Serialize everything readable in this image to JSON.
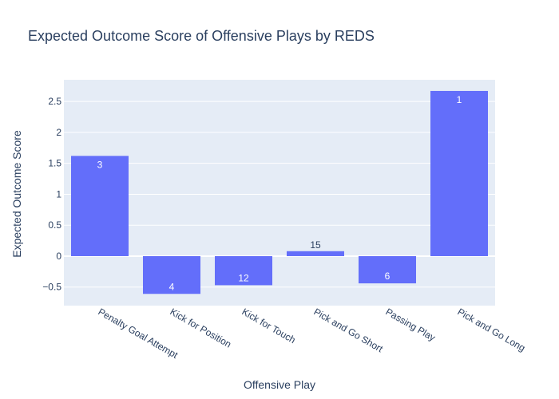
{
  "chart_data": {
    "type": "bar",
    "title": "Expected Outcome Score of Offensive Plays by REDS",
    "xlabel": "Offensive Play",
    "ylabel": "Expected Outcome Score",
    "categories": [
      "Penalty Goal Attempt",
      "Kick for Position",
      "Kick for Touch",
      "Pick and Go Short",
      "Passing Play",
      "Pick and Go Long"
    ],
    "values": [
      1.62,
      -0.61,
      -0.47,
      0.08,
      -0.44,
      2.67
    ],
    "bar_labels": [
      "3",
      "4",
      "12",
      "15",
      "6",
      "1"
    ],
    "ylim": [
      -0.8,
      2.85
    ],
    "yticks": [
      -0.5,
      0,
      0.5,
      1,
      1.5,
      2,
      2.5
    ],
    "ytick_labels": [
      "−0.5",
      "0",
      "0.5",
      "1",
      "1.5",
      "2",
      "2.5"
    ],
    "grid": true,
    "colors": {
      "bar": "#636efa",
      "plot_bg": "#e5ecf6",
      "grid": "#ffffff",
      "text": "#2a3f5f"
    }
  }
}
